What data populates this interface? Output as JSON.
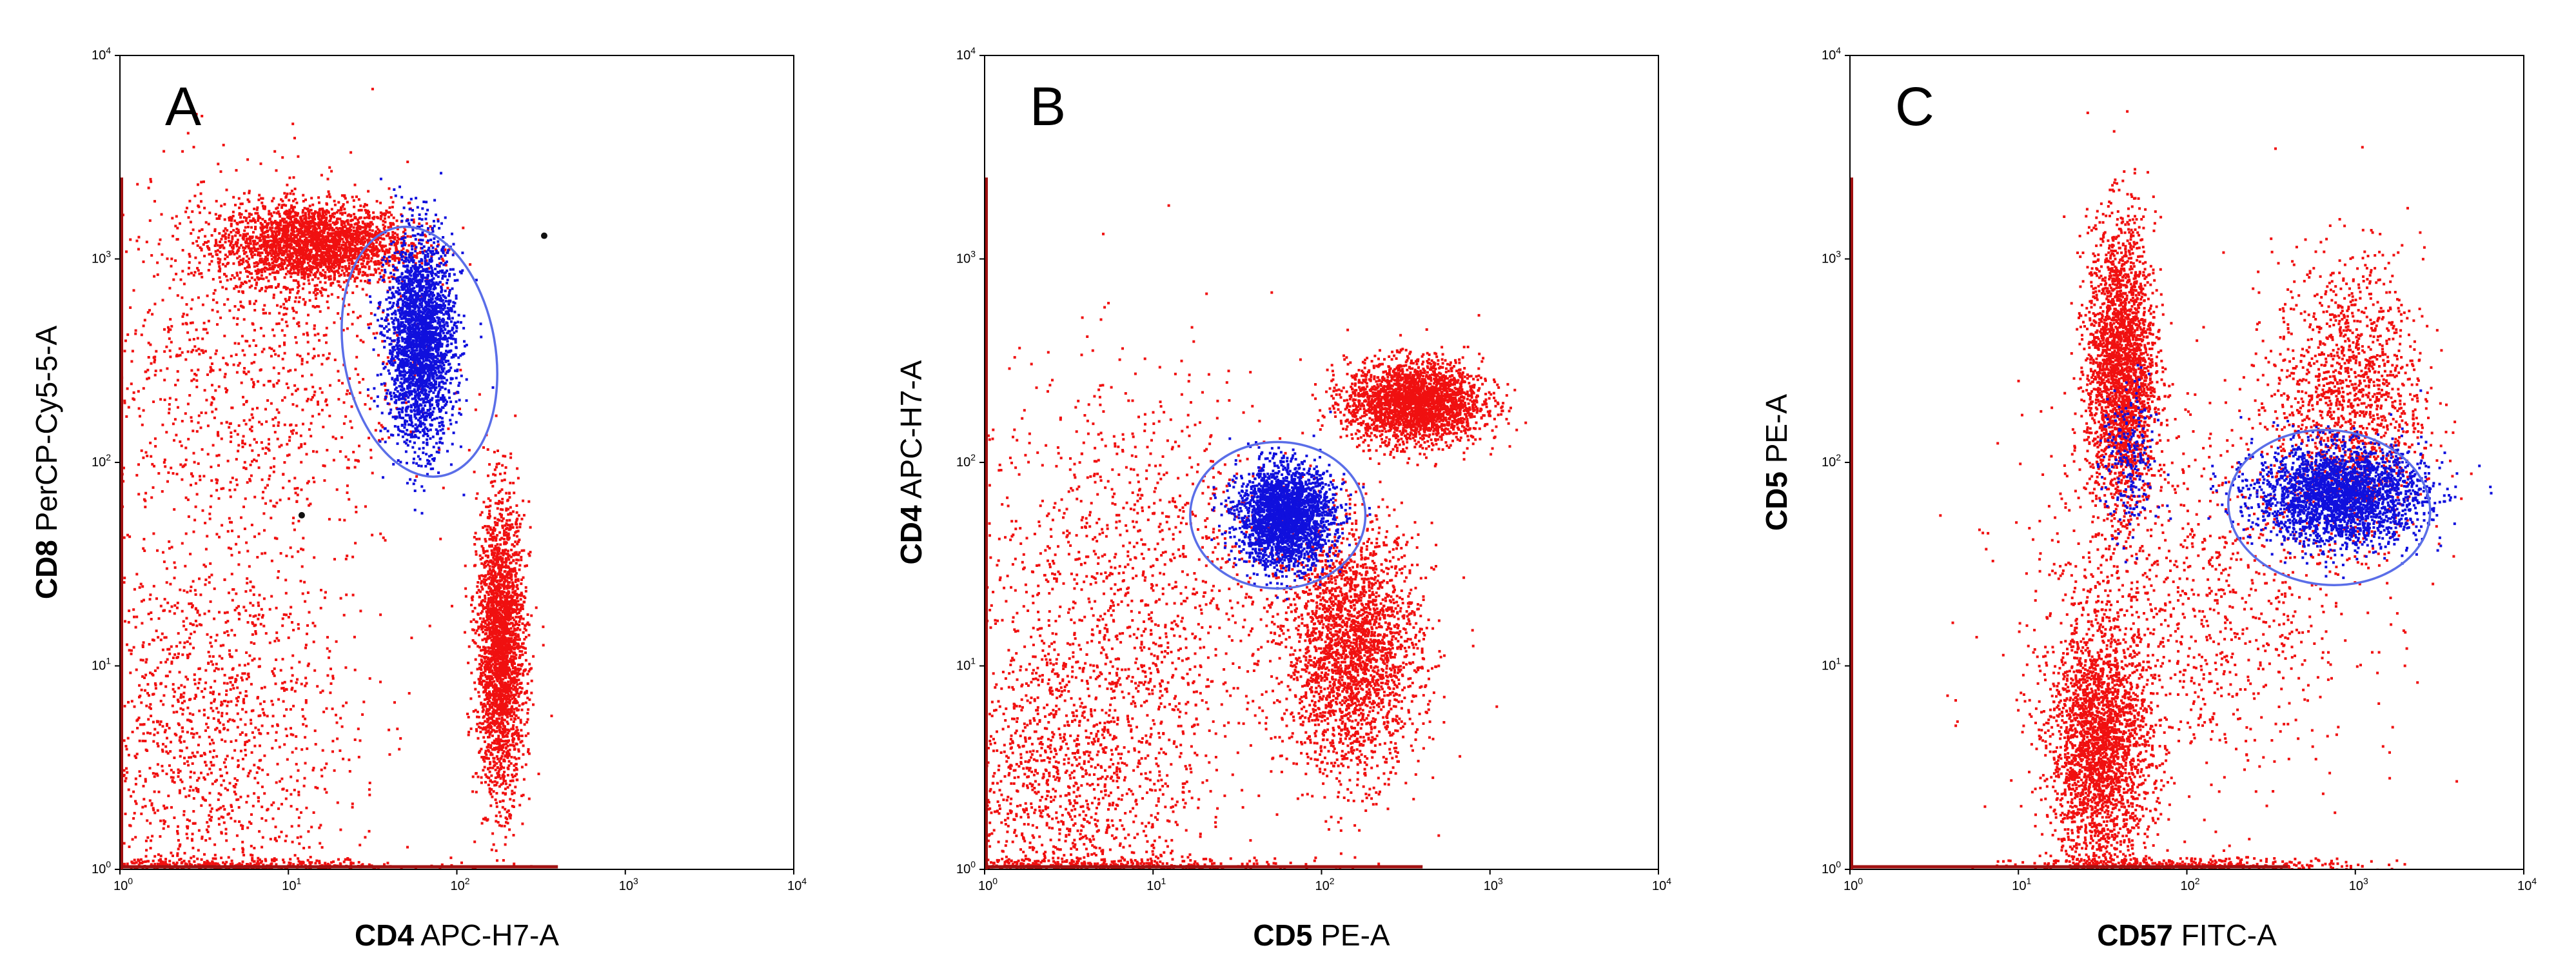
{
  "colors": {
    "gated_events": "#1010dd",
    "other_events": "#f01010",
    "gate_outline": "#5a6ee8",
    "rare_events": "#111111",
    "axis": "#000000"
  },
  "chart_data": [
    {
      "type": "scatter",
      "panel_label": "A",
      "xlabel": {
        "marker": "CD4",
        "fluor": "APC-H7-A"
      },
      "ylabel": {
        "marker": "CD8",
        "fluor": "PerCP-Cy5-5-A"
      },
      "scale": "log",
      "xlim": [
        1,
        10000
      ],
      "ylim": [
        1,
        10000
      ],
      "xtick_labels": [
        {
          "base": "10",
          "exp": "0"
        },
        {
          "base": "10",
          "exp": "1"
        },
        {
          "base": "10",
          "exp": "2"
        },
        {
          "base": "10",
          "exp": "3"
        },
        {
          "base": "10",
          "exp": "4"
        }
      ],
      "ytick_labels": [
        {
          "base": "10",
          "exp": "0"
        },
        {
          "base": "10",
          "exp": "1"
        },
        {
          "base": "10",
          "exp": "2"
        },
        {
          "base": "10",
          "exp": "3"
        },
        {
          "base": "10",
          "exp": "4"
        }
      ],
      "populations": [
        {
          "color_key": "other_events",
          "center": [
            14,
            1200
          ],
          "spread_decades": [
            0.28,
            0.1
          ],
          "density": "high"
        },
        {
          "color_key": "other_events",
          "center": [
            180,
            12
          ],
          "spread_decades": [
            0.07,
            0.35
          ],
          "density": "high"
        },
        {
          "color_key": "other_events",
          "center": [
            3,
            5
          ],
          "spread_decades": [
            0.45,
            0.5
          ],
          "density": "medium"
        },
        {
          "color_key": "other_events",
          "center": [
            5,
            300
          ],
          "spread_decades": [
            0.5,
            0.5
          ],
          "density": "low"
        },
        {
          "color_key": "other_events",
          "center": [
            3.5,
            1.05
          ],
          "spread_decades": [
            0.6,
            0.02
          ],
          "density": "baseline"
        },
        {
          "color_key": "gated_events",
          "center": [
            60,
            400
          ],
          "spread_decades": [
            0.1,
            0.25
          ],
          "density": "high"
        }
      ],
      "gate": {
        "type": "ellipse",
        "center": [
          60,
          350
        ],
        "radii_decades": [
          0.45,
          0.62
        ],
        "rotation_deg": -10
      },
      "rare_events": [
        [
          330,
          1300
        ],
        [
          12,
          55
        ]
      ]
    },
    {
      "type": "scatter",
      "panel_label": "B",
      "xlabel": {
        "marker": "CD5",
        "fluor": "PE-A"
      },
      "ylabel": {
        "marker": "CD4",
        "fluor": "APC-H7-A"
      },
      "scale": "log",
      "xlim": [
        1,
        10000
      ],
      "ylim": [
        1,
        10000
      ],
      "xtick_labels": [
        {
          "base": "10",
          "exp": "0"
        },
        {
          "base": "10",
          "exp": "1"
        },
        {
          "base": "10",
          "exp": "2"
        },
        {
          "base": "10",
          "exp": "3"
        },
        {
          "base": "10",
          "exp": "4"
        }
      ],
      "ytick_labels": [
        {
          "base": "10",
          "exp": "0"
        },
        {
          "base": "10",
          "exp": "1"
        },
        {
          "base": "10",
          "exp": "2"
        },
        {
          "base": "10",
          "exp": "3"
        },
        {
          "base": "10",
          "exp": "4"
        }
      ],
      "populations": [
        {
          "color_key": "other_events",
          "center": [
            350,
            200
          ],
          "spread_decades": [
            0.2,
            0.1
          ],
          "density": "high"
        },
        {
          "color_key": "other_events",
          "center": [
            150,
            12
          ],
          "spread_decades": [
            0.2,
            0.3
          ],
          "density": "high"
        },
        {
          "color_key": "other_events",
          "center": [
            3,
            3
          ],
          "spread_decades": [
            0.4,
            0.4
          ],
          "density": "medium"
        },
        {
          "color_key": "other_events",
          "center": [
            8,
            30
          ],
          "spread_decades": [
            0.5,
            0.5
          ],
          "density": "low"
        },
        {
          "color_key": "other_events",
          "center": [
            3.5,
            1.05
          ],
          "spread_decades": [
            0.6,
            0.02
          ],
          "density": "baseline"
        },
        {
          "color_key": "gated_events",
          "center": [
            60,
            55
          ],
          "spread_decades": [
            0.14,
            0.12
          ],
          "density": "high"
        }
      ],
      "gate": {
        "type": "ellipse",
        "center": [
          55,
          55
        ],
        "radii_decades": [
          0.52,
          0.36
        ],
        "rotation_deg": 0
      },
      "rare_events": []
    },
    {
      "type": "scatter",
      "panel_label": "C",
      "xlabel": {
        "marker": "CD57",
        "fluor": "FITC-A"
      },
      "ylabel": {
        "marker": "CD5",
        "fluor": "PE-A"
      },
      "scale": "log",
      "xlim": [
        1,
        10000
      ],
      "ylim": [
        1,
        10000
      ],
      "xtick_labels": [
        {
          "base": "10",
          "exp": "0"
        },
        {
          "base": "10",
          "exp": "1"
        },
        {
          "base": "10",
          "exp": "2"
        },
        {
          "base": "10",
          "exp": "3"
        },
        {
          "base": "10",
          "exp": "4"
        }
      ],
      "ytick_labels": [
        {
          "base": "10",
          "exp": "0"
        },
        {
          "base": "10",
          "exp": "1"
        },
        {
          "base": "10",
          "exp": "2"
        },
        {
          "base": "10",
          "exp": "3"
        },
        {
          "base": "10",
          "exp": "4"
        }
      ],
      "populations": [
        {
          "color_key": "other_events",
          "center": [
            40,
            300
          ],
          "spread_decades": [
            0.1,
            0.35
          ],
          "density": "high"
        },
        {
          "color_key": "other_events",
          "center": [
            30,
            4
          ],
          "spread_decades": [
            0.15,
            0.3
          ],
          "density": "high"
        },
        {
          "color_key": "other_events",
          "center": [
            900,
            200
          ],
          "spread_decades": [
            0.22,
            0.35
          ],
          "density": "medium"
        },
        {
          "color_key": "other_events",
          "center": [
            100,
            20
          ],
          "spread_decades": [
            0.5,
            0.5
          ],
          "density": "low"
        },
        {
          "color_key": "other_events",
          "center": [
            100,
            1.05
          ],
          "spread_decades": [
            0.5,
            0.02
          ],
          "density": "baseline"
        },
        {
          "color_key": "gated_events",
          "center": [
            800,
            70
          ],
          "spread_decades": [
            0.25,
            0.12
          ],
          "density": "high"
        },
        {
          "color_key": "gated_events",
          "center": [
            45,
            100
          ],
          "spread_decades": [
            0.08,
            0.2
          ],
          "density": "sparse"
        }
      ],
      "gate": {
        "type": "ellipse",
        "center": [
          700,
          60
        ],
        "radii_decades": [
          0.6,
          0.38
        ],
        "rotation_deg": 5
      },
      "rare_events": []
    }
  ]
}
